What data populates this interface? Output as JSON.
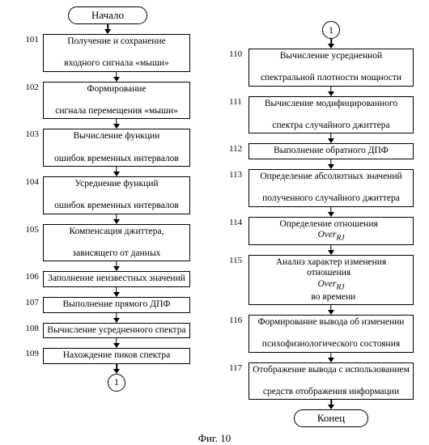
{
  "type": "flowchart",
  "title_caption": "Фиг. 10",
  "start_label": "Начало",
  "end_label": "Конец",
  "connector_label": "1",
  "colors": {
    "background": "#ffffff",
    "border": "#000000",
    "text": "#000000"
  },
  "font": {
    "family": "Times New Roman",
    "size_pt": 11
  },
  "left_steps": [
    {
      "num": "101",
      "lines": [
        "Получение и сохранение",
        "входного сигнала «мыши»"
      ]
    },
    {
      "num": "102",
      "lines": [
        "Формирование",
        "сигнала перемещения «мыши»"
      ]
    },
    {
      "num": "103",
      "lines": [
        "Вычисление функции",
        "ошибок временных интервалов"
      ]
    },
    {
      "num": "104",
      "lines": [
        "Усреднение функций",
        "ошибок временных интервалов"
      ]
    },
    {
      "num": "105",
      "lines": [
        "Компенсация джиттера,",
        "зависящего от данных"
      ]
    },
    {
      "num": "106",
      "lines": [
        "Заполнение неизвестных значений"
      ]
    },
    {
      "num": "107",
      "lines": [
        "Выполнение прямого ДПФ"
      ]
    },
    {
      "num": "108",
      "lines": [
        "Вычисление усредненного спектра"
      ]
    },
    {
      "num": "109",
      "lines": [
        "Нахождение пиков спектра"
      ]
    }
  ],
  "right_steps": [
    {
      "num": "110",
      "lines": [
        "Вычисление усредненной",
        "спектральной плотности мощности"
      ]
    },
    {
      "num": "111",
      "lines": [
        "Вычисление модифицированного",
        "спектра случайного джиттера"
      ]
    },
    {
      "num": "112",
      "lines": [
        "Выполнение обратного ДПФ"
      ]
    },
    {
      "num": "113",
      "lines": [
        "Определение абсолютных значений",
        "полученного случайного джиттера"
      ]
    },
    {
      "num": "114",
      "lines_html": "Определение отношения &nbsp;<span class='italic'>Over<sub>RJ</sub></span>"
    },
    {
      "num": "115",
      "lines_html": "Анализ характер изменения<br>отношения &nbsp;<span class='italic'>Over<sub>RJ</sub></span>&nbsp; во времени"
    },
    {
      "num": "116",
      "lines": [
        "Формирование вывода об изменении",
        "психофизиологического состояния"
      ]
    },
    {
      "num": "117",
      "lines": [
        "Отображение вывода с использованием",
        "средств отображения информации"
      ]
    }
  ]
}
